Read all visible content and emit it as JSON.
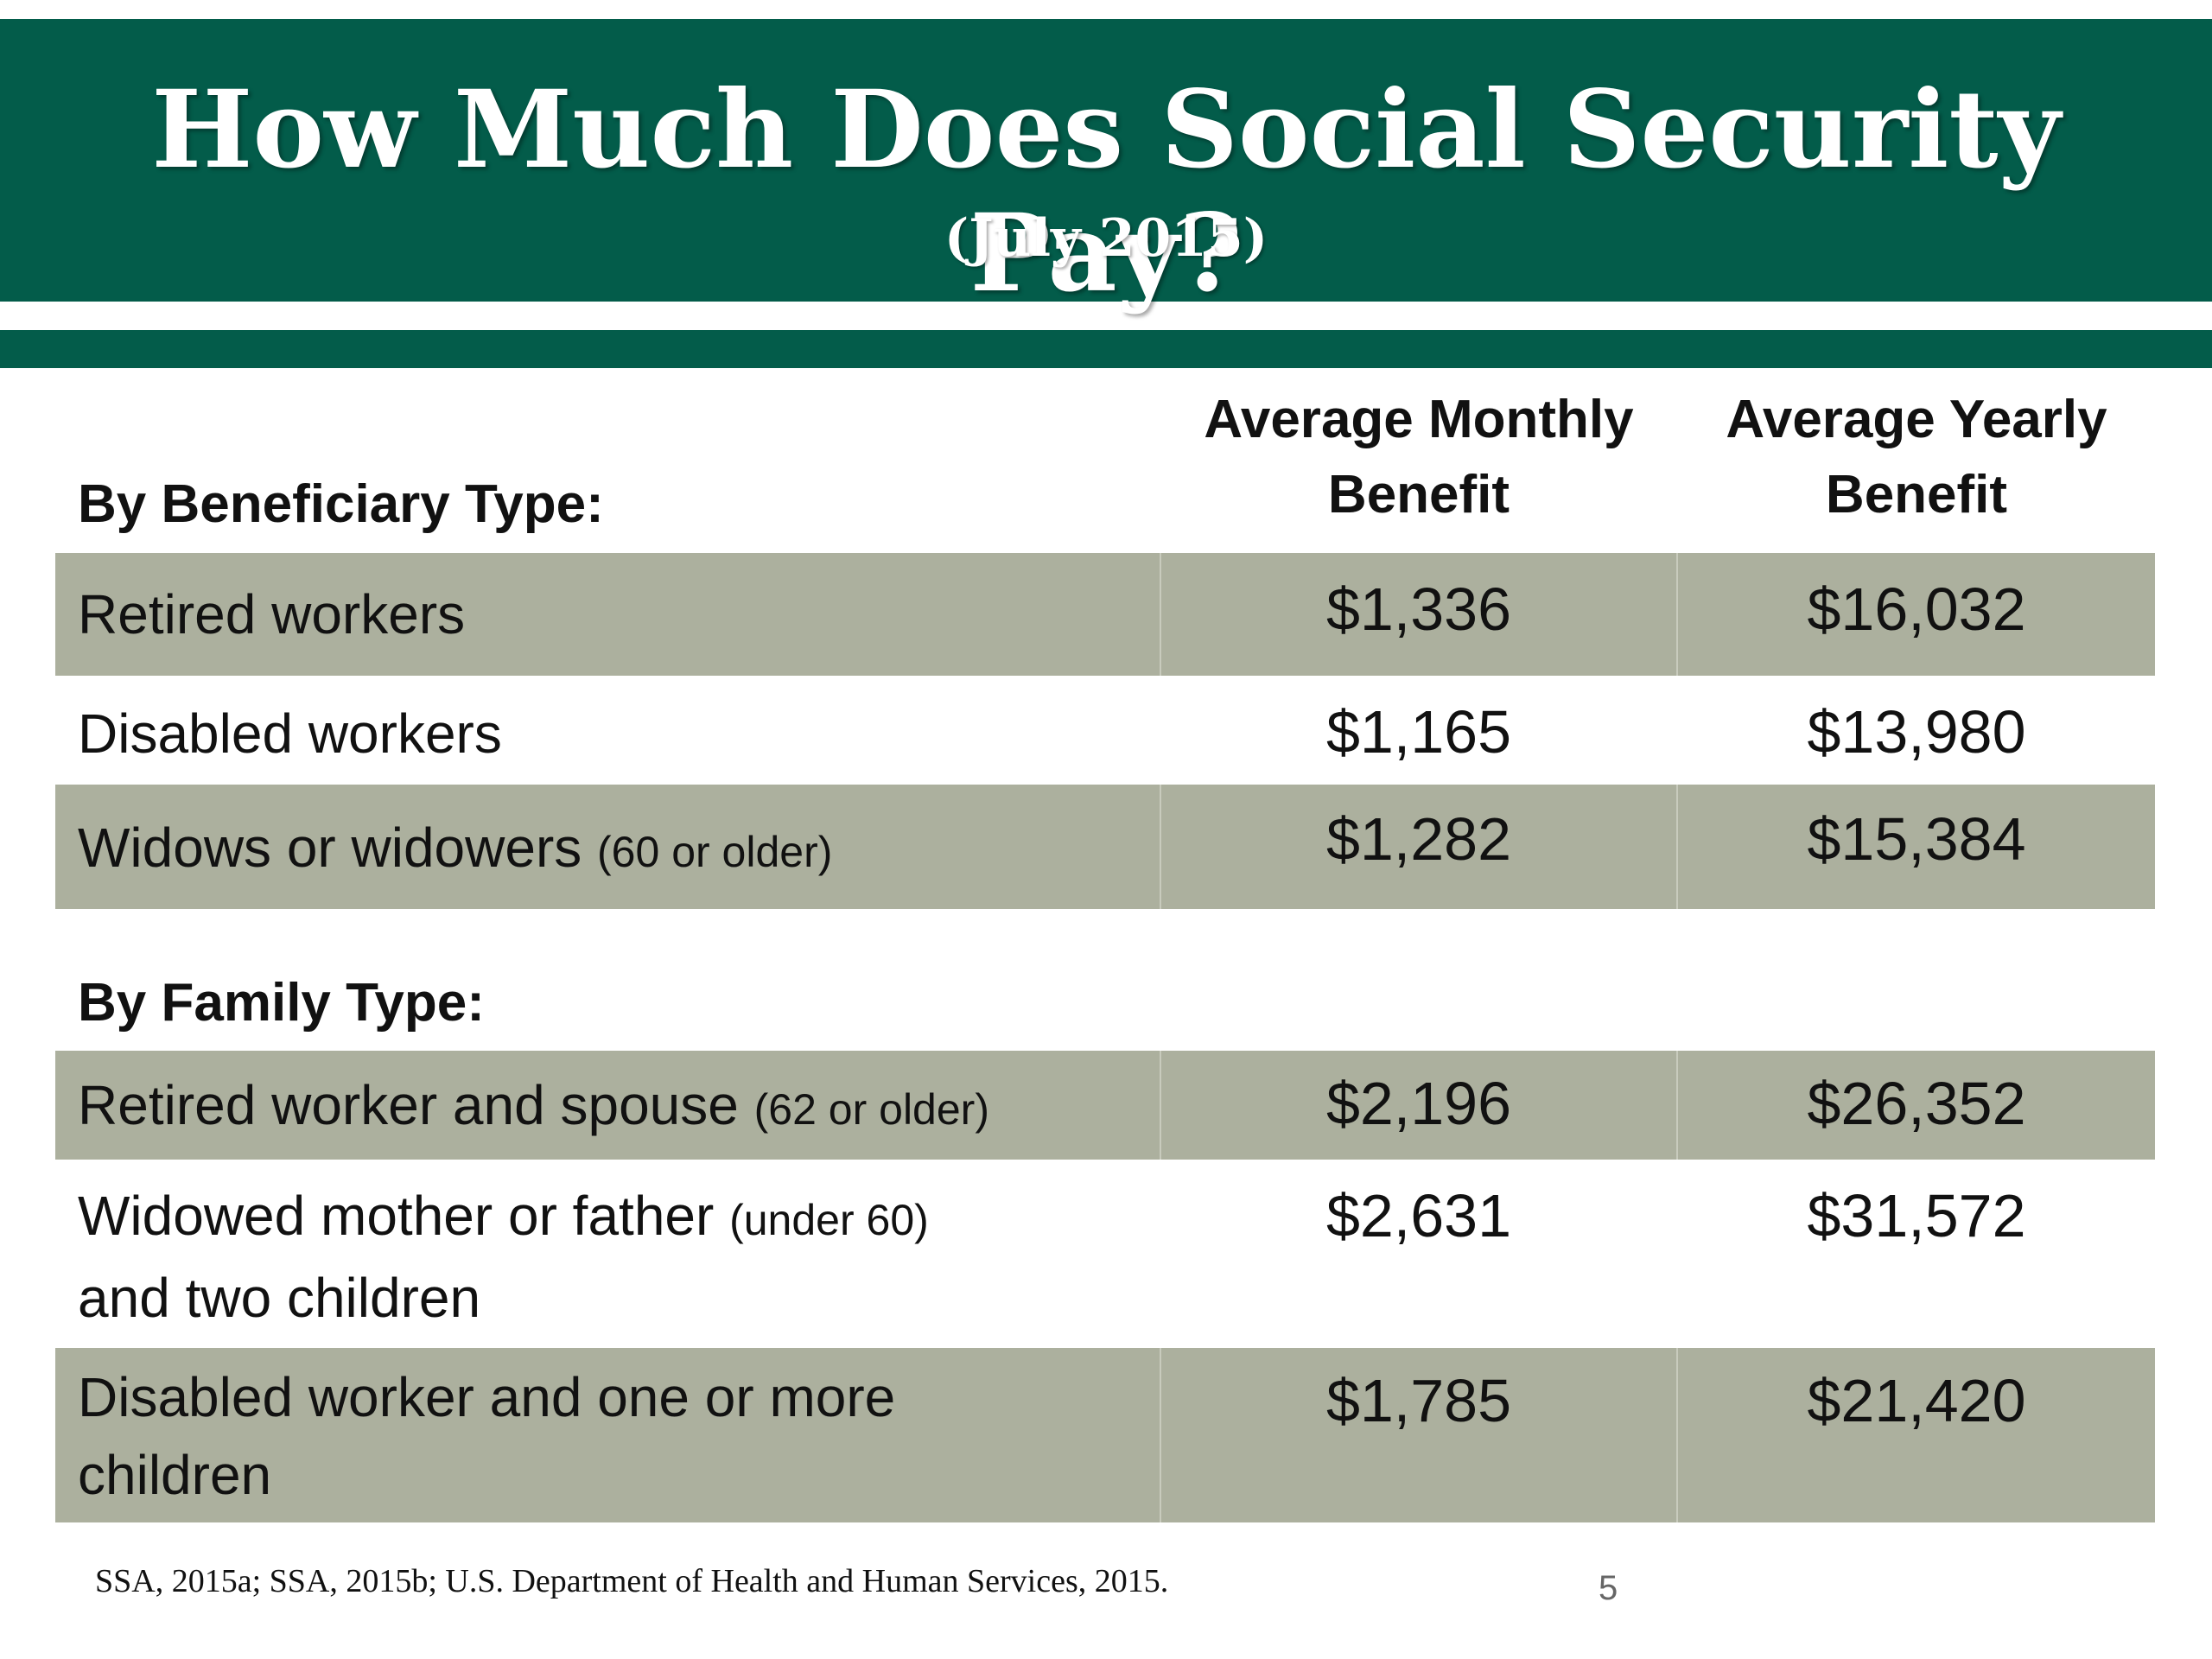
{
  "header": {
    "title": "How Much Does Social Security Pay?",
    "subtitle": "(July 2015)"
  },
  "table": {
    "columns": {
      "monthly_line1": "Average Monthly",
      "monthly_line2": "Benefit",
      "yearly_line1": "Average Yearly",
      "yearly_line2": "Benefit"
    },
    "beneficiary_heading": "By Beneficiary Type:",
    "family_heading": "By Family Type:",
    "rows": [
      {
        "label": "Retired workers",
        "note": "",
        "monthly": "$1,336",
        "yearly": "$16,032"
      },
      {
        "label": "Disabled workers",
        "note": "",
        "monthly": "$1,165",
        "yearly": "$13,980"
      },
      {
        "label": "Widows or widowers",
        "note": "(60 or older)",
        "monthly": "$1,282",
        "yearly": "$15,384"
      },
      {
        "label": "Retired worker and spouse",
        "note": "(62 or older)",
        "monthly": "$2,196",
        "yearly": "$26,352"
      },
      {
        "label": "Widowed mother or father",
        "note": "(under 60)",
        "label_cont": "and two children",
        "monthly": "$2,631",
        "yearly": "$31,572"
      },
      {
        "label": "Disabled worker and one or more children",
        "note": "",
        "monthly": "$1,785",
        "yearly": "$21,420"
      }
    ]
  },
  "footer": {
    "source": "SSA, 2015a; SSA, 2015b; U.S. Department of Health and Human Services, 2015.",
    "page_number": "5"
  }
}
